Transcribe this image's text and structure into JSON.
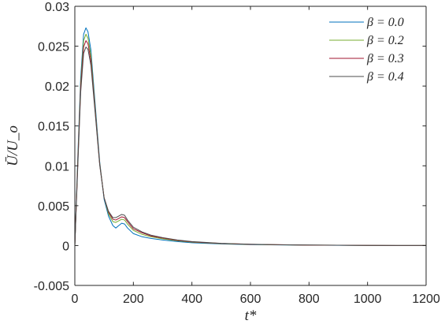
{
  "chart_data": {
    "type": "line",
    "xlabel": "t*",
    "ylabel": "Ū/U_o",
    "xlim": [
      0,
      1200
    ],
    "ylim": [
      -0.005,
      0.03
    ],
    "xticks": [
      0,
      200,
      400,
      600,
      800,
      1000,
      1200
    ],
    "xtick_labels": [
      "0",
      "200",
      "400",
      "600",
      "800",
      "1000",
      "1200"
    ],
    "yticks": [
      -0.005,
      0,
      0.005,
      0.01,
      0.015,
      0.02,
      0.025,
      0.03
    ],
    "ytick_labels": [
      "-0.005",
      "0",
      "0.005",
      "0.01",
      "0.015",
      "0.02",
      "0.025",
      "0.03"
    ],
    "grid": false,
    "legend_position": "top-right",
    "series": [
      {
        "name": "β = 0.0",
        "color": "#0072bd",
        "x": [
          0,
          10,
          20,
          30,
          38,
          45,
          55,
          70,
          85,
          100,
          115,
          130,
          140,
          150,
          160,
          170,
          180,
          200,
          230,
          260,
          300,
          350,
          400,
          500,
          600,
          700,
          800,
          900,
          1000,
          1100,
          1200
        ],
        "y": [
          0.0,
          0.011,
          0.021,
          0.0265,
          0.0273,
          0.0268,
          0.0245,
          0.0175,
          0.0105,
          0.0058,
          0.0037,
          0.0025,
          0.0022,
          0.0025,
          0.0028,
          0.0027,
          0.0022,
          0.0015,
          0.0011,
          0.0009,
          0.0007,
          0.0005,
          0.00035,
          0.0002,
          0.00012,
          8e-05,
          5e-05,
          3e-05,
          2e-05,
          1e-05,
          0.0
        ]
      },
      {
        "name": "β = 0.2",
        "color": "#77ac30",
        "x": [
          0,
          10,
          20,
          30,
          38,
          45,
          55,
          70,
          85,
          100,
          115,
          130,
          140,
          150,
          160,
          170,
          180,
          200,
          230,
          260,
          300,
          350,
          400,
          500,
          600,
          700,
          800,
          900,
          1000,
          1100,
          1200
        ],
        "y": [
          0.0,
          0.0105,
          0.0203,
          0.0257,
          0.0265,
          0.026,
          0.0238,
          0.017,
          0.0103,
          0.006,
          0.004,
          0.003,
          0.0029,
          0.0031,
          0.0033,
          0.0032,
          0.0027,
          0.0019,
          0.0014,
          0.0011,
          0.00085,
          0.0006,
          0.00042,
          0.00024,
          0.00014,
          9e-05,
          6e-05,
          4e-05,
          2e-05,
          1e-05,
          0.0
        ]
      },
      {
        "name": "β = 0.3",
        "color": "#a2142f",
        "x": [
          0,
          10,
          20,
          30,
          38,
          45,
          55,
          70,
          85,
          100,
          115,
          130,
          140,
          150,
          160,
          170,
          180,
          200,
          230,
          260,
          300,
          350,
          400,
          500,
          600,
          700,
          800,
          900,
          1000,
          1100,
          1200
        ],
        "y": [
          0.0,
          0.0102,
          0.0198,
          0.0249,
          0.0257,
          0.0253,
          0.0232,
          0.0167,
          0.0102,
          0.006,
          0.0042,
          0.0033,
          0.0032,
          0.0034,
          0.0036,
          0.0035,
          0.003,
          0.0021,
          0.0016,
          0.0012,
          0.00095,
          0.00065,
          0.00046,
          0.00026,
          0.00015,
          0.0001,
          6e-05,
          4e-05,
          2e-05,
          1e-05,
          0.0
        ]
      },
      {
        "name": "β = 0.4",
        "color": "#4d4d4d",
        "x": [
          0,
          10,
          20,
          30,
          38,
          45,
          55,
          70,
          85,
          100,
          115,
          130,
          140,
          150,
          160,
          170,
          180,
          200,
          230,
          260,
          300,
          350,
          400,
          500,
          600,
          700,
          800,
          900,
          1000,
          1100,
          1200
        ],
        "y": [
          0.0,
          0.0098,
          0.0192,
          0.0241,
          0.0249,
          0.0246,
          0.0226,
          0.0164,
          0.0101,
          0.006,
          0.0043,
          0.0035,
          0.0035,
          0.0037,
          0.0039,
          0.0038,
          0.0032,
          0.0023,
          0.0017,
          0.0013,
          0.001,
          0.0007,
          0.0005,
          0.00028,
          0.00016,
          0.0001,
          7e-05,
          4e-05,
          2e-05,
          1e-05,
          0.0
        ]
      }
    ]
  }
}
